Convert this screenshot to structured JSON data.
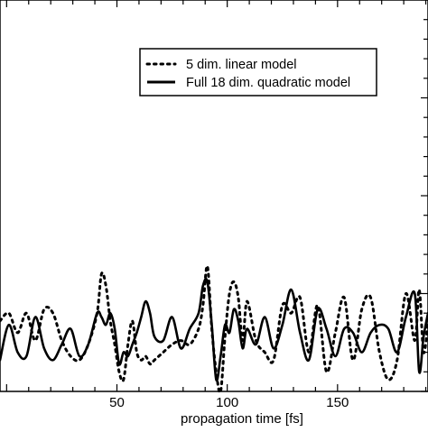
{
  "chart_data": {
    "type": "line",
    "title": "",
    "xlabel": "propagation time [fs]",
    "ylabel": "",
    "xlim": [
      -3,
      191
    ],
    "ylim": [
      0,
      1
    ],
    "x_ticks": [
      50,
      100,
      150
    ],
    "grid": false,
    "legend_position": "top-right",
    "series": [
      {
        "name": "5 dim. linear model",
        "style": "dotted",
        "color": "#000000",
        "x": [
          -3,
          1,
          5,
          9,
          13,
          17,
          21,
          25,
          29,
          33,
          37,
          41,
          43,
          45,
          47,
          49,
          51,
          53,
          55,
          57,
          59,
          61,
          63,
          65,
          67,
          71,
          75,
          79,
          83,
          87,
          89,
          91,
          93,
          95,
          97,
          99,
          101,
          103,
          105,
          107,
          109,
          113,
          117,
          121,
          125,
          129,
          133,
          137,
          141,
          145,
          149,
          153,
          157,
          161,
          165,
          169,
          173,
          177,
          181,
          185,
          187,
          189,
          191
        ],
        "y": [
          0.18,
          0.2,
          0.15,
          0.2,
          0.13,
          0.21,
          0.2,
          0.13,
          0.09,
          0.08,
          0.12,
          0.2,
          0.3,
          0.27,
          0.18,
          0.12,
          0.05,
          0.03,
          0.12,
          0.18,
          0.1,
          0.08,
          0.09,
          0.07,
          0.08,
          0.1,
          0.12,
          0.13,
          0.12,
          0.16,
          0.22,
          0.32,
          0.16,
          0.05,
          0.0,
          0.14,
          0.25,
          0.28,
          0.24,
          0.13,
          0.23,
          0.13,
          0.1,
          0.08,
          0.22,
          0.2,
          0.24,
          0.1,
          0.22,
          0.05,
          0.15,
          0.24,
          0.08,
          0.21,
          0.24,
          0.1,
          0.03,
          0.08,
          0.25,
          0.13,
          0.26,
          0.1,
          0.18
        ]
      },
      {
        "name": "Full 18 dim. quadratic model",
        "style": "solid",
        "color": "#000000",
        "x": [
          -3,
          1,
          5,
          9,
          13,
          17,
          21,
          25,
          29,
          33,
          37,
          41,
          43,
          45,
          47,
          49,
          51,
          53,
          55,
          57,
          59,
          61,
          63,
          65,
          67,
          71,
          75,
          79,
          83,
          87,
          89,
          91,
          93,
          95,
          97,
          99,
          101,
          103,
          105,
          107,
          109,
          113,
          117,
          121,
          125,
          129,
          133,
          137,
          141,
          145,
          149,
          153,
          157,
          161,
          165,
          169,
          173,
          177,
          181,
          185,
          187,
          189,
          191
        ],
        "y": [
          0.08,
          0.17,
          0.1,
          0.09,
          0.19,
          0.11,
          0.08,
          0.12,
          0.16,
          0.09,
          0.12,
          0.2,
          0.19,
          0.17,
          0.2,
          0.16,
          0.07,
          0.1,
          0.09,
          0.12,
          0.15,
          0.19,
          0.23,
          0.2,
          0.14,
          0.13,
          0.19,
          0.11,
          0.16,
          0.2,
          0.27,
          0.28,
          0.17,
          0.03,
          0.09,
          0.17,
          0.15,
          0.21,
          0.18,
          0.11,
          0.16,
          0.12,
          0.19,
          0.11,
          0.17,
          0.26,
          0.15,
          0.08,
          0.21,
          0.16,
          0.09,
          0.16,
          0.15,
          0.1,
          0.15,
          0.17,
          0.16,
          0.1,
          0.19,
          0.25,
          0.05,
          0.14,
          0.2
        ]
      }
    ]
  }
}
